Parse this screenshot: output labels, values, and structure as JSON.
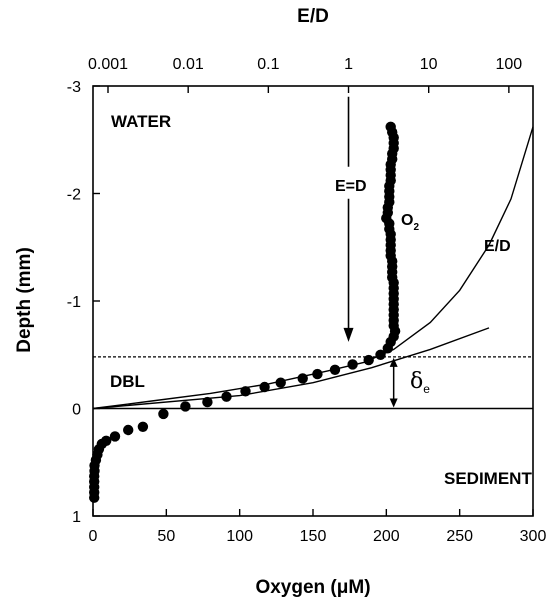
{
  "chart_data": {
    "type": "scatter",
    "xlabel": "Oxygen (μM)",
    "x2label": "E/D",
    "ylabel": "Depth (mm)",
    "xlim": [
      0,
      300
    ],
    "ylim": [
      -3,
      1
    ],
    "x_ticks": [
      "0",
      "50",
      "100",
      "150",
      "200",
      "250",
      "300"
    ],
    "x_tick_values": [
      0,
      50,
      100,
      150,
      200,
      250,
      300
    ],
    "y_ticks": [
      "-3",
      "-2",
      "-1",
      "0",
      "1"
    ],
    "y_tick_values": [
      -3,
      -2,
      -1,
      0,
      1
    ],
    "x2_scale": "log",
    "x2_ticks": [
      "0.001",
      "0.01",
      "0.1",
      "1",
      "10",
      "100"
    ],
    "x2_tick_values": [
      0.001,
      0.01,
      0.1,
      1,
      10,
      100
    ],
    "x2_lim": [
      0.00065,
      200
    ],
    "annotations": {
      "water": "WATER",
      "sediment": "SEDIMENT",
      "dbl": "DBL",
      "e_eq_d": "E=D",
      "o2": "O",
      "o2_sub": "2",
      "ed_curve": "E/D",
      "delta": "δ",
      "delta_sub": "e"
    },
    "boundaries": {
      "sediment_surface_depth": 0,
      "dbl_top_depth": -0.48
    },
    "e_eq_d_arrow": {
      "x2": 1,
      "from_depth": -2.9,
      "to_depth": -0.62
    },
    "delta_arrow": {
      "x": 205,
      "from_depth": -0.48,
      "to_depth": 0
    },
    "series": [
      {
        "name": "O2",
        "kind": "points",
        "points": [
          [
            203,
            -2.62
          ],
          [
            204,
            -2.57
          ],
          [
            205,
            -2.52
          ],
          [
            205,
            -2.47
          ],
          [
            205,
            -2.42
          ],
          [
            204,
            -2.37
          ],
          [
            204,
            -2.32
          ],
          [
            203,
            -2.27
          ],
          [
            203,
            -2.22
          ],
          [
            203,
            -2.17
          ],
          [
            203,
            -2.12
          ],
          [
            202,
            -2.07
          ],
          [
            202,
            -2.02
          ],
          [
            202,
            -1.97
          ],
          [
            202,
            -1.92
          ],
          [
            201,
            -1.87
          ],
          [
            201,
            -1.82
          ],
          [
            200,
            -1.77
          ],
          [
            202,
            -1.72
          ],
          [
            202,
            -1.67
          ],
          [
            203,
            -1.62
          ],
          [
            203,
            -1.57
          ],
          [
            203,
            -1.52
          ],
          [
            203,
            -1.47
          ],
          [
            203,
            -1.42
          ],
          [
            204,
            -1.37
          ],
          [
            204,
            -1.32
          ],
          [
            204,
            -1.27
          ],
          [
            204,
            -1.22
          ],
          [
            205,
            -1.17
          ],
          [
            205,
            -1.12
          ],
          [
            205,
            -1.07
          ],
          [
            205,
            -1.02
          ],
          [
            205,
            -0.97
          ],
          [
            205,
            -0.92
          ],
          [
            205,
            -0.87
          ],
          [
            205,
            -0.82
          ],
          [
            205,
            -0.77
          ],
          [
            206,
            -0.72
          ],
          [
            205,
            -0.67
          ],
          [
            203,
            -0.62
          ],
          [
            201,
            -0.56
          ],
          [
            196,
            -0.5
          ],
          [
            188,
            -0.45
          ],
          [
            177,
            -0.41
          ],
          [
            165,
            -0.36
          ],
          [
            153,
            -0.32
          ],
          [
            143,
            -0.28
          ],
          [
            128,
            -0.24
          ],
          [
            117,
            -0.2
          ],
          [
            104,
            -0.16
          ],
          [
            91,
            -0.11
          ],
          [
            78,
            -0.06
          ],
          [
            63,
            -0.02
          ],
          [
            48,
            0.05
          ],
          [
            34,
            0.17
          ],
          [
            24,
            0.2
          ],
          [
            15,
            0.26
          ],
          [
            9,
            0.3
          ],
          [
            6,
            0.33
          ],
          [
            4,
            0.38
          ],
          [
            3,
            0.43
          ],
          [
            2,
            0.48
          ],
          [
            1,
            0.53
          ],
          [
            1,
            0.58
          ],
          [
            0.8,
            0.63
          ],
          [
            0.8,
            0.68
          ],
          [
            0.8,
            0.73
          ],
          [
            0.8,
            0.78
          ],
          [
            0.8,
            0.83
          ]
        ]
      },
      {
        "name": "E/D",
        "kind": "line",
        "points": [
          [
            0,
            0
          ],
          [
            40,
            -0.07
          ],
          [
            80,
            -0.14
          ],
          [
            120,
            -0.23
          ],
          [
            160,
            -0.35
          ],
          [
            185,
            -0.43
          ],
          [
            205,
            -0.55
          ],
          [
            230,
            -0.8
          ],
          [
            250,
            -1.1
          ],
          [
            270,
            -1.52
          ],
          [
            285,
            -1.95
          ],
          [
            300,
            -2.62
          ]
        ]
      },
      {
        "name": "",
        "kind": "line",
        "points": [
          [
            0,
            0
          ],
          [
            100,
            -0.12
          ],
          [
            150,
            -0.24
          ],
          [
            190,
            -0.38
          ],
          [
            230,
            -0.55
          ],
          [
            270,
            -0.75
          ]
        ]
      }
    ]
  }
}
